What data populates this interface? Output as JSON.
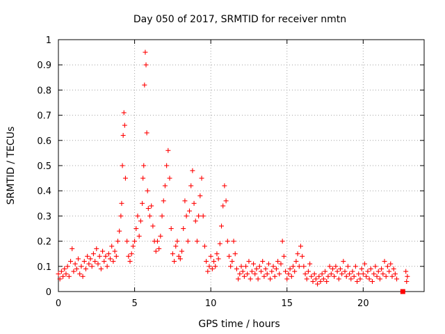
{
  "chart_data": {
    "type": "scatter",
    "title": "Day 050 of 2017, SRMTID for receiver nmtn",
    "xlabel": "GPS time / hours",
    "ylabel": "SRMTID / TECUs",
    "xlim": [
      0,
      24
    ],
    "ylim": [
      0,
      1
    ],
    "x_ticks": [
      0,
      5,
      10,
      15,
      20
    ],
    "x_tick_labels": [
      "0",
      "5",
      "10",
      "15",
      "20"
    ],
    "y_ticks": [
      0,
      0.1,
      0.2,
      0.3,
      0.4,
      0.5,
      0.6,
      0.7,
      0.8,
      0.9,
      1
    ],
    "y_tick_labels": [
      "0",
      "0.1",
      "0.2",
      "0.3",
      "0.4",
      "0.5",
      "0.6",
      "0.7",
      "0.8",
      "0.9",
      "1"
    ],
    "grid": true,
    "marker": "plus",
    "color": "#ff0000",
    "series": [
      {
        "name": "SRMTID",
        "points": [
          [
            0.0,
            0.07
          ],
          [
            0.1,
            0.05
          ],
          [
            0.2,
            0.08
          ],
          [
            0.3,
            0.06
          ],
          [
            0.4,
            0.09
          ],
          [
            0.5,
            0.07
          ],
          [
            0.6,
            0.1
          ],
          [
            0.7,
            0.06
          ],
          [
            0.8,
            0.12
          ],
          [
            0.9,
            0.17
          ],
          [
            1.0,
            0.08
          ],
          [
            1.1,
            0.11
          ],
          [
            1.2,
            0.09
          ],
          [
            1.3,
            0.13
          ],
          [
            1.4,
            0.07
          ],
          [
            1.5,
            0.1
          ],
          [
            1.6,
            0.06
          ],
          [
            1.7,
            0.12
          ],
          [
            1.8,
            0.09
          ],
          [
            1.9,
            0.14
          ],
          [
            2.0,
            0.11
          ],
          [
            2.1,
            0.13
          ],
          [
            2.2,
            0.1
          ],
          [
            2.3,
            0.15
          ],
          [
            2.4,
            0.12
          ],
          [
            2.5,
            0.17
          ],
          [
            2.6,
            0.11
          ],
          [
            2.7,
            0.14
          ],
          [
            2.8,
            0.09
          ],
          [
            2.9,
            0.16
          ],
          [
            3.0,
            0.12
          ],
          [
            3.1,
            0.14
          ],
          [
            3.2,
            0.1
          ],
          [
            3.3,
            0.15
          ],
          [
            3.4,
            0.13
          ],
          [
            3.5,
            0.18
          ],
          [
            3.6,
            0.12
          ],
          [
            3.7,
            0.16
          ],
          [
            3.8,
            0.14
          ],
          [
            3.9,
            0.2
          ],
          [
            4.0,
            0.24
          ],
          [
            4.1,
            0.3
          ],
          [
            4.15,
            0.35
          ],
          [
            4.2,
            0.5
          ],
          [
            4.25,
            0.62
          ],
          [
            4.3,
            0.71
          ],
          [
            4.35,
            0.66
          ],
          [
            4.4,
            0.45
          ],
          [
            4.5,
            0.2
          ],
          [
            4.6,
            0.14
          ],
          [
            4.7,
            0.12
          ],
          [
            4.8,
            0.15
          ],
          [
            4.9,
            0.18
          ],
          [
            5.0,
            0.2
          ],
          [
            5.1,
            0.25
          ],
          [
            5.2,
            0.3
          ],
          [
            5.3,
            0.22
          ],
          [
            5.4,
            0.28
          ],
          [
            5.5,
            0.35
          ],
          [
            5.55,
            0.45
          ],
          [
            5.6,
            0.5
          ],
          [
            5.65,
            0.82
          ],
          [
            5.7,
            0.95
          ],
          [
            5.75,
            0.9
          ],
          [
            5.8,
            0.63
          ],
          [
            5.85,
            0.4
          ],
          [
            5.9,
            0.33
          ],
          [
            6.0,
            0.3
          ],
          [
            6.1,
            0.34
          ],
          [
            6.2,
            0.26
          ],
          [
            6.3,
            0.2
          ],
          [
            6.4,
            0.16
          ],
          [
            6.5,
            0.2
          ],
          [
            6.6,
            0.17
          ],
          [
            6.7,
            0.22
          ],
          [
            6.8,
            0.3
          ],
          [
            6.9,
            0.36
          ],
          [
            7.0,
            0.42
          ],
          [
            7.1,
            0.5
          ],
          [
            7.2,
            0.56
          ],
          [
            7.3,
            0.45
          ],
          [
            7.4,
            0.25
          ],
          [
            7.5,
            0.15
          ],
          [
            7.6,
            0.12
          ],
          [
            7.7,
            0.18
          ],
          [
            7.8,
            0.2
          ],
          [
            7.9,
            0.14
          ],
          [
            8.0,
            0.13
          ],
          [
            8.1,
            0.16
          ],
          [
            8.2,
            0.25
          ],
          [
            8.3,
            0.36
          ],
          [
            8.4,
            0.3
          ],
          [
            8.5,
            0.2
          ],
          [
            8.6,
            0.32
          ],
          [
            8.7,
            0.42
          ],
          [
            8.8,
            0.48
          ],
          [
            8.9,
            0.35
          ],
          [
            9.0,
            0.28
          ],
          [
            9.1,
            0.2
          ],
          [
            9.2,
            0.3
          ],
          [
            9.3,
            0.38
          ],
          [
            9.4,
            0.45
          ],
          [
            9.5,
            0.3
          ],
          [
            9.6,
            0.18
          ],
          [
            9.7,
            0.12
          ],
          [
            9.8,
            0.08
          ],
          [
            9.9,
            0.1
          ],
          [
            10.0,
            0.14
          ],
          [
            10.1,
            0.09
          ],
          [
            10.2,
            0.12
          ],
          [
            10.3,
            0.1
          ],
          [
            10.4,
            0.15
          ],
          [
            10.5,
            0.13
          ],
          [
            10.6,
            0.19
          ],
          [
            10.7,
            0.26
          ],
          [
            10.8,
            0.34
          ],
          [
            10.9,
            0.42
          ],
          [
            11.0,
            0.36
          ],
          [
            11.1,
            0.2
          ],
          [
            11.2,
            0.14
          ],
          [
            11.3,
            0.1
          ],
          [
            11.4,
            0.12
          ],
          [
            11.5,
            0.2
          ],
          [
            11.6,
            0.15
          ],
          [
            11.7,
            0.09
          ],
          [
            11.8,
            0.05
          ],
          [
            11.9,
            0.07
          ],
          [
            12.0,
            0.1
          ],
          [
            12.1,
            0.08
          ],
          [
            12.2,
            0.06
          ],
          [
            12.3,
            0.1
          ],
          [
            12.4,
            0.07
          ],
          [
            12.5,
            0.12
          ],
          [
            12.6,
            0.05
          ],
          [
            12.7,
            0.08
          ],
          [
            12.8,
            0.11
          ],
          [
            12.9,
            0.07
          ],
          [
            13.0,
            0.09
          ],
          [
            13.1,
            0.05
          ],
          [
            13.2,
            0.1
          ],
          [
            13.3,
            0.08
          ],
          [
            13.4,
            0.12
          ],
          [
            13.5,
            0.06
          ],
          [
            13.6,
            0.09
          ],
          [
            13.7,
            0.07
          ],
          [
            13.8,
            0.11
          ],
          [
            13.9,
            0.05
          ],
          [
            14.0,
            0.08
          ],
          [
            14.1,
            0.1
          ],
          [
            14.2,
            0.06
          ],
          [
            14.3,
            0.09
          ],
          [
            14.4,
            0.12
          ],
          [
            14.5,
            0.07
          ],
          [
            14.6,
            0.11
          ],
          [
            14.7,
            0.2
          ],
          [
            14.8,
            0.14
          ],
          [
            14.9,
            0.08
          ],
          [
            15.0,
            0.05
          ],
          [
            15.1,
            0.07
          ],
          [
            15.2,
            0.09
          ],
          [
            15.3,
            0.06
          ],
          [
            15.4,
            0.1
          ],
          [
            15.5,
            0.08
          ],
          [
            15.6,
            0.12
          ],
          [
            15.7,
            0.15
          ],
          [
            15.8,
            0.1
          ],
          [
            15.9,
            0.18
          ],
          [
            16.0,
            0.14
          ],
          [
            16.1,
            0.1
          ],
          [
            16.2,
            0.07
          ],
          [
            16.3,
            0.05
          ],
          [
            16.4,
            0.08
          ],
          [
            16.5,
            0.11
          ],
          [
            16.6,
            0.06
          ],
          [
            16.7,
            0.04
          ],
          [
            16.8,
            0.07
          ],
          [
            16.9,
            0.05
          ],
          [
            17.0,
            0.03
          ],
          [
            17.1,
            0.06
          ],
          [
            17.2,
            0.04
          ],
          [
            17.3,
            0.07
          ],
          [
            17.4,
            0.05
          ],
          [
            17.5,
            0.08
          ],
          [
            17.6,
            0.04
          ],
          [
            17.7,
            0.06
          ],
          [
            17.8,
            0.1
          ],
          [
            17.9,
            0.07
          ],
          [
            18.0,
            0.09
          ],
          [
            18.1,
            0.06
          ],
          [
            18.2,
            0.1
          ],
          [
            18.3,
            0.08
          ],
          [
            18.4,
            0.05
          ],
          [
            18.5,
            0.09
          ],
          [
            18.6,
            0.07
          ],
          [
            18.7,
            0.12
          ],
          [
            18.8,
            0.08
          ],
          [
            18.9,
            0.06
          ],
          [
            19.0,
            0.1
          ],
          [
            19.1,
            0.07
          ],
          [
            19.2,
            0.05
          ],
          [
            19.3,
            0.08
          ],
          [
            19.4,
            0.06
          ],
          [
            19.5,
            0.1
          ],
          [
            19.6,
            0.04
          ],
          [
            19.7,
            0.07
          ],
          [
            19.8,
            0.05
          ],
          [
            19.9,
            0.09
          ],
          [
            20.0,
            0.07
          ],
          [
            20.1,
            0.11
          ],
          [
            20.2,
            0.06
          ],
          [
            20.3,
            0.08
          ],
          [
            20.4,
            0.05
          ],
          [
            20.5,
            0.09
          ],
          [
            20.6,
            0.04
          ],
          [
            20.7,
            0.07
          ],
          [
            20.8,
            0.1
          ],
          [
            20.9,
            0.06
          ],
          [
            21.0,
            0.08
          ],
          [
            21.1,
            0.05
          ],
          [
            21.2,
            0.09
          ],
          [
            21.3,
            0.07
          ],
          [
            21.4,
            0.12
          ],
          [
            21.5,
            0.06
          ],
          [
            21.6,
            0.1
          ],
          [
            21.7,
            0.08
          ],
          [
            21.8,
            0.11
          ],
          [
            21.9,
            0.06
          ],
          [
            22.0,
            0.09
          ],
          [
            22.1,
            0.07
          ],
          [
            22.2,
            0.05
          ],
          [
            22.8,
            0.08
          ],
          [
            22.9,
            0.06
          ],
          [
            22.85,
            0.04
          ]
        ]
      }
    ],
    "outlier_marker": {
      "x": 22.6,
      "y": 0.0,
      "shape": "square"
    }
  }
}
